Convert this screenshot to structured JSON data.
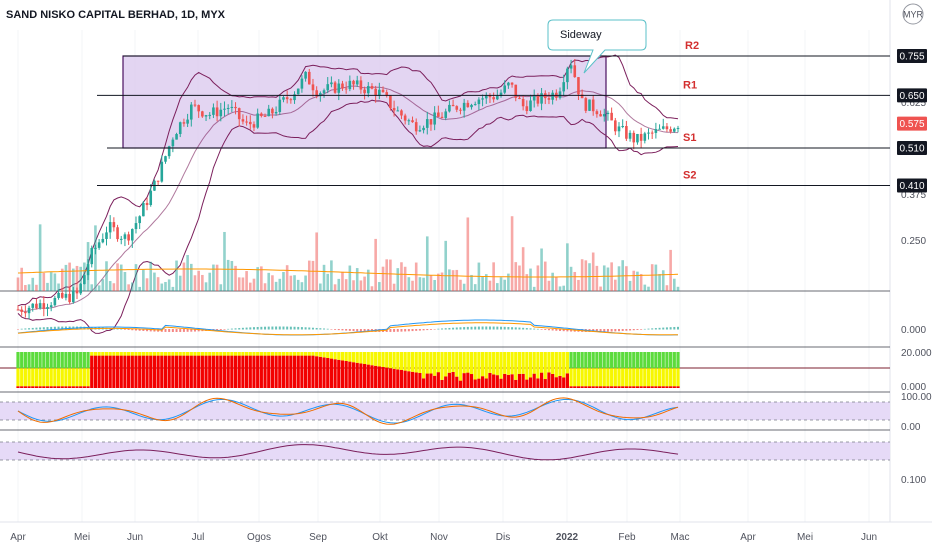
{
  "header": {
    "title": "SAND NISKO CAPITAL BERHAD, 1D, MYX"
  },
  "currency_badge": "MYR",
  "callout": {
    "text": "Sideway"
  },
  "colors": {
    "up": "#26a69a",
    "down": "#ef5350",
    "band": "#7b1f5c",
    "box_fill": "#d9c7ee",
    "box_stroke": "#4a1060",
    "level_line": "#131722",
    "label_red": "#d32f2f",
    "macd": "#2196f3",
    "signal": "#ff9800",
    "osc_fill": "#e6daf7",
    "osc_line_k": "#2196f3",
    "osc_line_d": "#ef6c00",
    "heat_red": "#f20000",
    "heat_yellow": "#f7f700",
    "heat_green": "#5cdb3c",
    "current_price": "#ef5350"
  },
  "chart_data": {
    "type": "candlestick",
    "title": "SAND NISKO CAPITAL BERHAD, 1D, MYX",
    "x_ticks": [
      "Apr",
      "Mei",
      "Jun",
      "Jul",
      "Ogos",
      "Sep",
      "Okt",
      "Nov",
      "Dis",
      "2022",
      "Feb",
      "Mac",
      "Apr",
      "Mei",
      "Jun"
    ],
    "price_axis_labels": [
      "0.625",
      "0.375",
      "0.250",
      "0.100"
    ],
    "price_axis_tags": [
      {
        "label": "0.755",
        "style": "dark"
      },
      {
        "label": "0.650",
        "style": "dark"
      },
      {
        "label": "0.575",
        "style": "current"
      },
      {
        "label": "0.510",
        "style": "dark"
      },
      {
        "label": "0.410",
        "style": "dark"
      }
    ],
    "levels": [
      {
        "name": "R2",
        "price": 0.755
      },
      {
        "name": "R1",
        "price": 0.65
      },
      {
        "name": "S1",
        "price": 0.51
      },
      {
        "name": "S2",
        "price": 0.41
      }
    ],
    "range_box": {
      "top": 0.755,
      "bottom": 0.51,
      "start_month": "Jun",
      "end_month": "Jan 2022"
    },
    "last_price": 0.575,
    "close_path": [
      {
        "t": 0.0,
        "close": 0.08
      },
      {
        "t": 0.5,
        "close": 0.1
      },
      {
        "t": 1.0,
        "close": 0.12
      },
      {
        "t": 1.2,
        "close": 0.22
      },
      {
        "t": 1.5,
        "close": 0.3
      },
      {
        "t": 1.8,
        "close": 0.27
      },
      {
        "t": 2.0,
        "close": 0.32
      },
      {
        "t": 2.3,
        "close": 0.42
      },
      {
        "t": 2.6,
        "close": 0.55
      },
      {
        "t": 2.9,
        "close": 0.62
      },
      {
        "t": 3.2,
        "close": 0.6
      },
      {
        "t": 3.5,
        "close": 0.62
      },
      {
        "t": 3.8,
        "close": 0.57
      },
      {
        "t": 4.2,
        "close": 0.6
      },
      {
        "t": 4.6,
        "close": 0.66
      },
      {
        "t": 4.8,
        "close": 0.7
      },
      {
        "t": 5.0,
        "close": 0.66
      },
      {
        "t": 5.5,
        "close": 0.68
      },
      {
        "t": 6.0,
        "close": 0.66
      },
      {
        "t": 6.3,
        "close": 0.61
      },
      {
        "t": 6.6,
        "close": 0.57
      },
      {
        "t": 7.0,
        "close": 0.59
      },
      {
        "t": 7.3,
        "close": 0.62
      },
      {
        "t": 7.6,
        "close": 0.64
      },
      {
        "t": 8.0,
        "close": 0.65
      },
      {
        "t": 8.2,
        "close": 0.68
      },
      {
        "t": 8.4,
        "close": 0.62
      },
      {
        "t": 8.7,
        "close": 0.64
      },
      {
        "t": 9.0,
        "close": 0.66
      },
      {
        "t": 9.2,
        "close": 0.75
      },
      {
        "t": 9.4,
        "close": 0.63
      },
      {
        "t": 9.7,
        "close": 0.61
      },
      {
        "t": 10.0,
        "close": 0.56
      },
      {
        "t": 10.3,
        "close": 0.53
      },
      {
        "t": 10.6,
        "close": 0.55
      },
      {
        "t": 10.8,
        "close": 0.56
      },
      {
        "t": 11.0,
        "close": 0.575
      }
    ],
    "heatmap_scale": [
      "20.000",
      "0.000"
    ],
    "stoch_scale": [
      "100.00",
      "0.00"
    ],
    "macd_scale": [
      "0.000"
    ],
    "volume_note": "volume bars with moving average"
  }
}
